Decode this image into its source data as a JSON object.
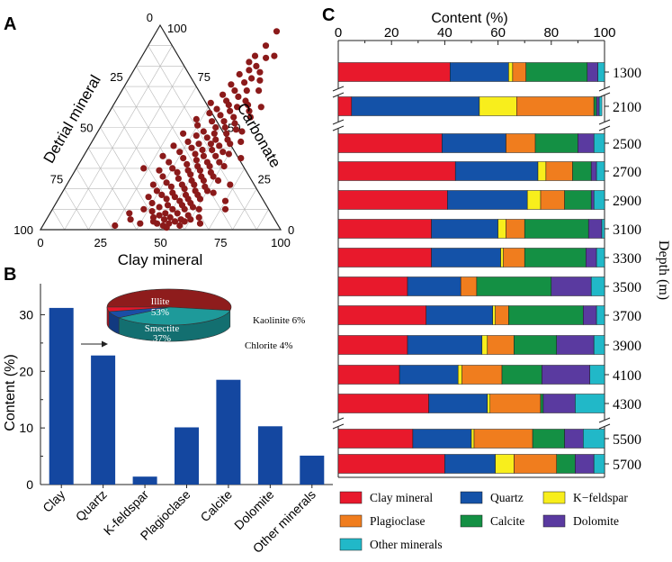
{
  "panels": {
    "a": "A",
    "b": "B",
    "c": "C"
  },
  "colors": {
    "dot": "#8b1a1a",
    "bar_b": "#1447a0",
    "clay": "#e8192c",
    "quartz": "#1452a8",
    "kfeldspar": "#f8ee1c",
    "plagioclase": "#f07d1e",
    "calcite": "#149044",
    "dolomite": "#5a3aa0",
    "other": "#21b8c8",
    "illite": "#8e1c1c",
    "smectite": "#1e9a9a",
    "kaolinite": "#1a4ea6",
    "chlorite": "#e6162a"
  },
  "chart_data": [
    {
      "panel": "A",
      "type": "scatter",
      "subtype": "ternary",
      "axes": {
        "left": "Detrial mineral",
        "right": "Carbonate",
        "bottom": "Clay mineral"
      },
      "ticks": [
        "0",
        "25",
        "50",
        "75",
        "100"
      ],
      "note": "Approximately 150 samples; each point = [clay %, carbonate %] with detrital = remainder",
      "points": [
        [
          50,
          97
        ],
        [
          49,
          90
        ],
        [
          47,
          85
        ],
        [
          52,
          84
        ],
        [
          46,
          82
        ],
        [
          50,
          80
        ],
        [
          48,
          78
        ],
        [
          53,
          77
        ],
        [
          45,
          76
        ],
        [
          51,
          74
        ],
        [
          49,
          72
        ],
        [
          55,
          73
        ],
        [
          44,
          71
        ],
        [
          47,
          68
        ],
        [
          52,
          68
        ],
        [
          57,
          68
        ],
        [
          43,
          66
        ],
        [
          50,
          65
        ],
        [
          46,
          63
        ],
        [
          54,
          63
        ],
        [
          40,
          62
        ],
        [
          48,
          61
        ],
        [
          52,
          60
        ],
        [
          56,
          61
        ],
        [
          44,
          59
        ],
        [
          50,
          58
        ],
        [
          58,
          58
        ],
        [
          42,
          57
        ],
        [
          47,
          56
        ],
        [
          53,
          55
        ],
        [
          60,
          55
        ],
        [
          38,
          54
        ],
        [
          45,
          53
        ],
        [
          50,
          53
        ],
        [
          55,
          52
        ],
        [
          40,
          51
        ],
        [
          48,
          50
        ],
        [
          52,
          50
        ],
        [
          57,
          49
        ],
        [
          44,
          48
        ],
        [
          49,
          47
        ],
        [
          54,
          47
        ],
        [
          60,
          48
        ],
        [
          36,
          47
        ],
        [
          42,
          46
        ],
        [
          47,
          45
        ],
        [
          51,
          44
        ],
        [
          56,
          44
        ],
        [
          40,
          43
        ],
        [
          45,
          42
        ],
        [
          50,
          42
        ],
        [
          54,
          41
        ],
        [
          58,
          42
        ],
        [
          62,
          43
        ],
        [
          35,
          41
        ],
        [
          43,
          40
        ],
        [
          48,
          39
        ],
        [
          52,
          39
        ],
        [
          57,
          38
        ],
        [
          39,
          38
        ],
        [
          46,
          37
        ],
        [
          50,
          36
        ],
        [
          55,
          36
        ],
        [
          60,
          37
        ],
        [
          33,
          36
        ],
        [
          42,
          35
        ],
        [
          48,
          34
        ],
        [
          53,
          33
        ],
        [
          58,
          33
        ],
        [
          37,
          33
        ],
        [
          45,
          32
        ],
        [
          50,
          31
        ],
        [
          55,
          31
        ],
        [
          61,
          31
        ],
        [
          40,
          30
        ],
        [
          47,
          29
        ],
        [
          52,
          29
        ],
        [
          57,
          28
        ],
        [
          35,
          29
        ],
        [
          43,
          28
        ],
        [
          49,
          27
        ],
        [
          54,
          26
        ],
        [
          59,
          26
        ],
        [
          38,
          26
        ],
        [
          45,
          25
        ],
        [
          51,
          24
        ],
        [
          56,
          24
        ],
        [
          62,
          24
        ],
        [
          41,
          23
        ],
        [
          48,
          22
        ],
        [
          53,
          22
        ],
        [
          58,
          21
        ],
        [
          36,
          22
        ],
        [
          44,
          21
        ],
        [
          50,
          20
        ],
        [
          55,
          19
        ],
        [
          60,
          19
        ],
        [
          39,
          19
        ],
        [
          46,
          18
        ],
        [
          52,
          17
        ],
        [
          57,
          17
        ],
        [
          63,
          18
        ],
        [
          42,
          17
        ],
        [
          48,
          16
        ],
        [
          54,
          15
        ],
        [
          59,
          15
        ],
        [
          37,
          16
        ],
        [
          45,
          15
        ],
        [
          51,
          14
        ],
        [
          56,
          13
        ],
        [
          40,
          13
        ],
        [
          47,
          12
        ],
        [
          53,
          12
        ],
        [
          58,
          11
        ],
        [
          44,
          11
        ],
        [
          50,
          10
        ],
        [
          55,
          10
        ],
        [
          61,
          10
        ],
        [
          42,
          9
        ],
        [
          48,
          8
        ],
        [
          53,
          8
        ],
        [
          58,
          7
        ],
        [
          46,
          7
        ],
        [
          51,
          6
        ],
        [
          56,
          5
        ],
        [
          49,
          5
        ],
        [
          44,
          6
        ],
        [
          54,
          4
        ],
        [
          60,
          5
        ],
        [
          47,
          3
        ],
        [
          52,
          3
        ],
        [
          57,
          2
        ],
        [
          50,
          2
        ],
        [
          45,
          4
        ],
        [
          65,
          3
        ],
        [
          35,
          5
        ],
        [
          30,
          2
        ],
        [
          68,
          22
        ],
        [
          70,
          14
        ],
        [
          33,
          8
        ],
        [
          62,
          60
        ],
        [
          66,
          35
        ],
        [
          28,
          30
        ],
        [
          72,
          10
        ],
        [
          55,
          85
        ],
        [
          58,
          4
        ],
        [
          40,
          3
        ],
        [
          52,
          1
        ],
        [
          63,
          6
        ],
        [
          38,
          10
        ]
      ]
    },
    {
      "panel": "B",
      "type": "bar",
      "ylabel": "Content (%)",
      "ylim": [
        0,
        35
      ],
      "yticks": [
        "0",
        "10",
        "20",
        "30"
      ],
      "categories": [
        "Clay",
        "Quartz",
        "K-feldspar",
        "Plagioclase",
        "Calcite",
        "Dolomite",
        "Other minerals"
      ],
      "values": [
        31.2,
        22.8,
        1.4,
        10.1,
        18.5,
        10.3,
        5.1
      ]
    },
    {
      "panel": "B-inset",
      "type": "pie",
      "labels": [
        "Illite",
        "Smectite",
        "Kaolinite",
        "Chlorite"
      ],
      "values": [
        53,
        37,
        6,
        4
      ],
      "slice_labels": [
        "Illite\n53%",
        "Smectite\n37%",
        "Kaolinite  6%",
        "Chlorite  4%"
      ],
      "display": {
        "illite_name": "Illite",
        "illite_pct": "53%",
        "smectite_name": "Smectite",
        "smectite_pct": "37%",
        "kaolinite": "Kaolinite  6%",
        "chlorite": "Chlorite  4%"
      }
    },
    {
      "panel": "C",
      "type": "bar",
      "orientation": "horizontal",
      "stacked": true,
      "title": "Content (%)",
      "ylabel": "Depth (m)",
      "xlim": [
        0,
        100
      ],
      "xticks": [
        "0",
        "20",
        "40",
        "60",
        "80",
        "100"
      ],
      "categories": [
        "1300",
        "2100",
        "2500",
        "2700",
        "2900",
        "3100",
        "3300",
        "3500",
        "3700",
        "3900",
        "4100",
        "4300",
        "5500",
        "5700"
      ],
      "series": [
        {
          "name": "Clay mineral",
          "key": "clay",
          "values": [
            42,
            5,
            39,
            44,
            41,
            35,
            35,
            26,
            33,
            26,
            23,
            34,
            28,
            40
          ]
        },
        {
          "name": "Quartz",
          "key": "quartz",
          "values": [
            22,
            48,
            24,
            31,
            30,
            25,
            26,
            20,
            25,
            28,
            22,
            22,
            22,
            19
          ]
        },
        {
          "name": "K−feldspar",
          "key": "kfeldspar",
          "values": [
            1.5,
            14,
            0,
            3,
            5,
            3,
            1,
            0,
            1,
            2,
            1.5,
            1,
            1,
            7
          ]
        },
        {
          "name": "Plagioclase",
          "key": "plagioclase",
          "values": [
            5,
            29,
            11,
            10,
            9,
            7,
            8,
            6,
            5,
            10,
            15,
            19,
            22,
            16
          ]
        },
        {
          "name": "Calcite",
          "key": "calcite",
          "values": [
            23,
            1,
            16,
            7,
            10,
            24,
            23,
            28,
            28,
            16,
            15,
            1,
            12,
            7
          ]
        },
        {
          "name": "Dolomite",
          "key": "dolomite",
          "values": [
            4,
            1,
            6,
            2,
            1,
            5,
            4,
            15,
            5,
            14,
            18,
            12,
            7,
            7
          ]
        },
        {
          "name": "Other minerals",
          "key": "other",
          "values": [
            2.5,
            1,
            4,
            3,
            4,
            1,
            3,
            5,
            3,
            4,
            5.5,
            11,
            8,
            4
          ]
        }
      ]
    }
  ]
}
